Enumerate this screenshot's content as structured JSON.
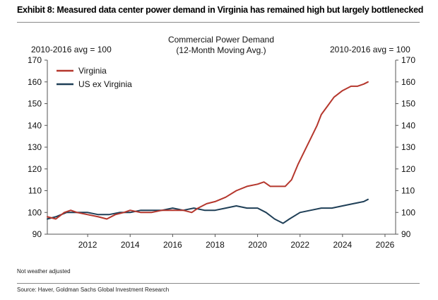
{
  "header": {
    "exhibit_title": "Exhibit 8: Measured data center power demand in Virginia has remained high but largely bottlenecked"
  },
  "footer": {
    "note": "Not weather adjusted",
    "source": "Source:  Haver, Goldman Sachs Global Investment Research"
  },
  "chart_data": {
    "type": "line",
    "title": "Commercial Power Demand\n(12-Month Moving Avg.)",
    "ylabel_left": "2010-2016 avg = 100",
    "ylabel_right": "2010-2016 avg = 100",
    "xlim": [
      2010.1,
      2026.5
    ],
    "ylim": [
      90,
      170
    ],
    "x_ticks": [
      "2012",
      "2014",
      "2016",
      "2018",
      "2020",
      "2022",
      "2024",
      "2026"
    ],
    "y_ticks": [
      "90",
      "100",
      "110",
      "120",
      "130",
      "140",
      "150",
      "160",
      "170"
    ],
    "legend_position": "top-left",
    "grid": false,
    "series": [
      {
        "name": "Virginia",
        "color": "#b5372d",
        "x": [
          2010.1,
          2010.5,
          2010.9,
          2011.2,
          2011.5,
          2012.0,
          2012.5,
          2012.9,
          2013.3,
          2013.7,
          2014.0,
          2014.5,
          2015.0,
          2015.5,
          2016.0,
          2016.5,
          2016.9,
          2017.2,
          2017.6,
          2018.0,
          2018.5,
          2019.0,
          2019.5,
          2020.0,
          2020.3,
          2020.6,
          2021.0,
          2021.3,
          2021.6,
          2021.9,
          2022.2,
          2022.5,
          2022.8,
          2023.0,
          2023.3,
          2023.6,
          2024.0,
          2024.4,
          2024.7,
          2025.0,
          2025.2
        ],
        "y": [
          98,
          97,
          100,
          101,
          100,
          99,
          98,
          97,
          99,
          100,
          101,
          100,
          100,
          101,
          101,
          101,
          100,
          102,
          104,
          105,
          107,
          110,
          112,
          113,
          114,
          112,
          112,
          112,
          115,
          122,
          128,
          134,
          140,
          145,
          149,
          153,
          156,
          158,
          158,
          159,
          160
        ]
      },
      {
        "name": "US ex Virginia",
        "color": "#1f3f57",
        "x": [
          2010.1,
          2010.5,
          2011.0,
          2011.5,
          2012.0,
          2012.5,
          2013.0,
          2013.5,
          2014.0,
          2014.5,
          2015.0,
          2015.5,
          2016.0,
          2016.5,
          2017.0,
          2017.5,
          2018.0,
          2018.5,
          2019.0,
          2019.5,
          2020.0,
          2020.4,
          2020.8,
          2021.2,
          2021.5,
          2022.0,
          2022.5,
          2023.0,
          2023.5,
          2024.0,
          2024.5,
          2025.0,
          2025.2
        ],
        "y": [
          97,
          98,
          100,
          100,
          100,
          99,
          99,
          100,
          100,
          101,
          101,
          101,
          102,
          101,
          102,
          101,
          101,
          102,
          103,
          102,
          102,
          100,
          97,
          95,
          97,
          100,
          101,
          102,
          102,
          103,
          104,
          105,
          106
        ]
      }
    ]
  }
}
